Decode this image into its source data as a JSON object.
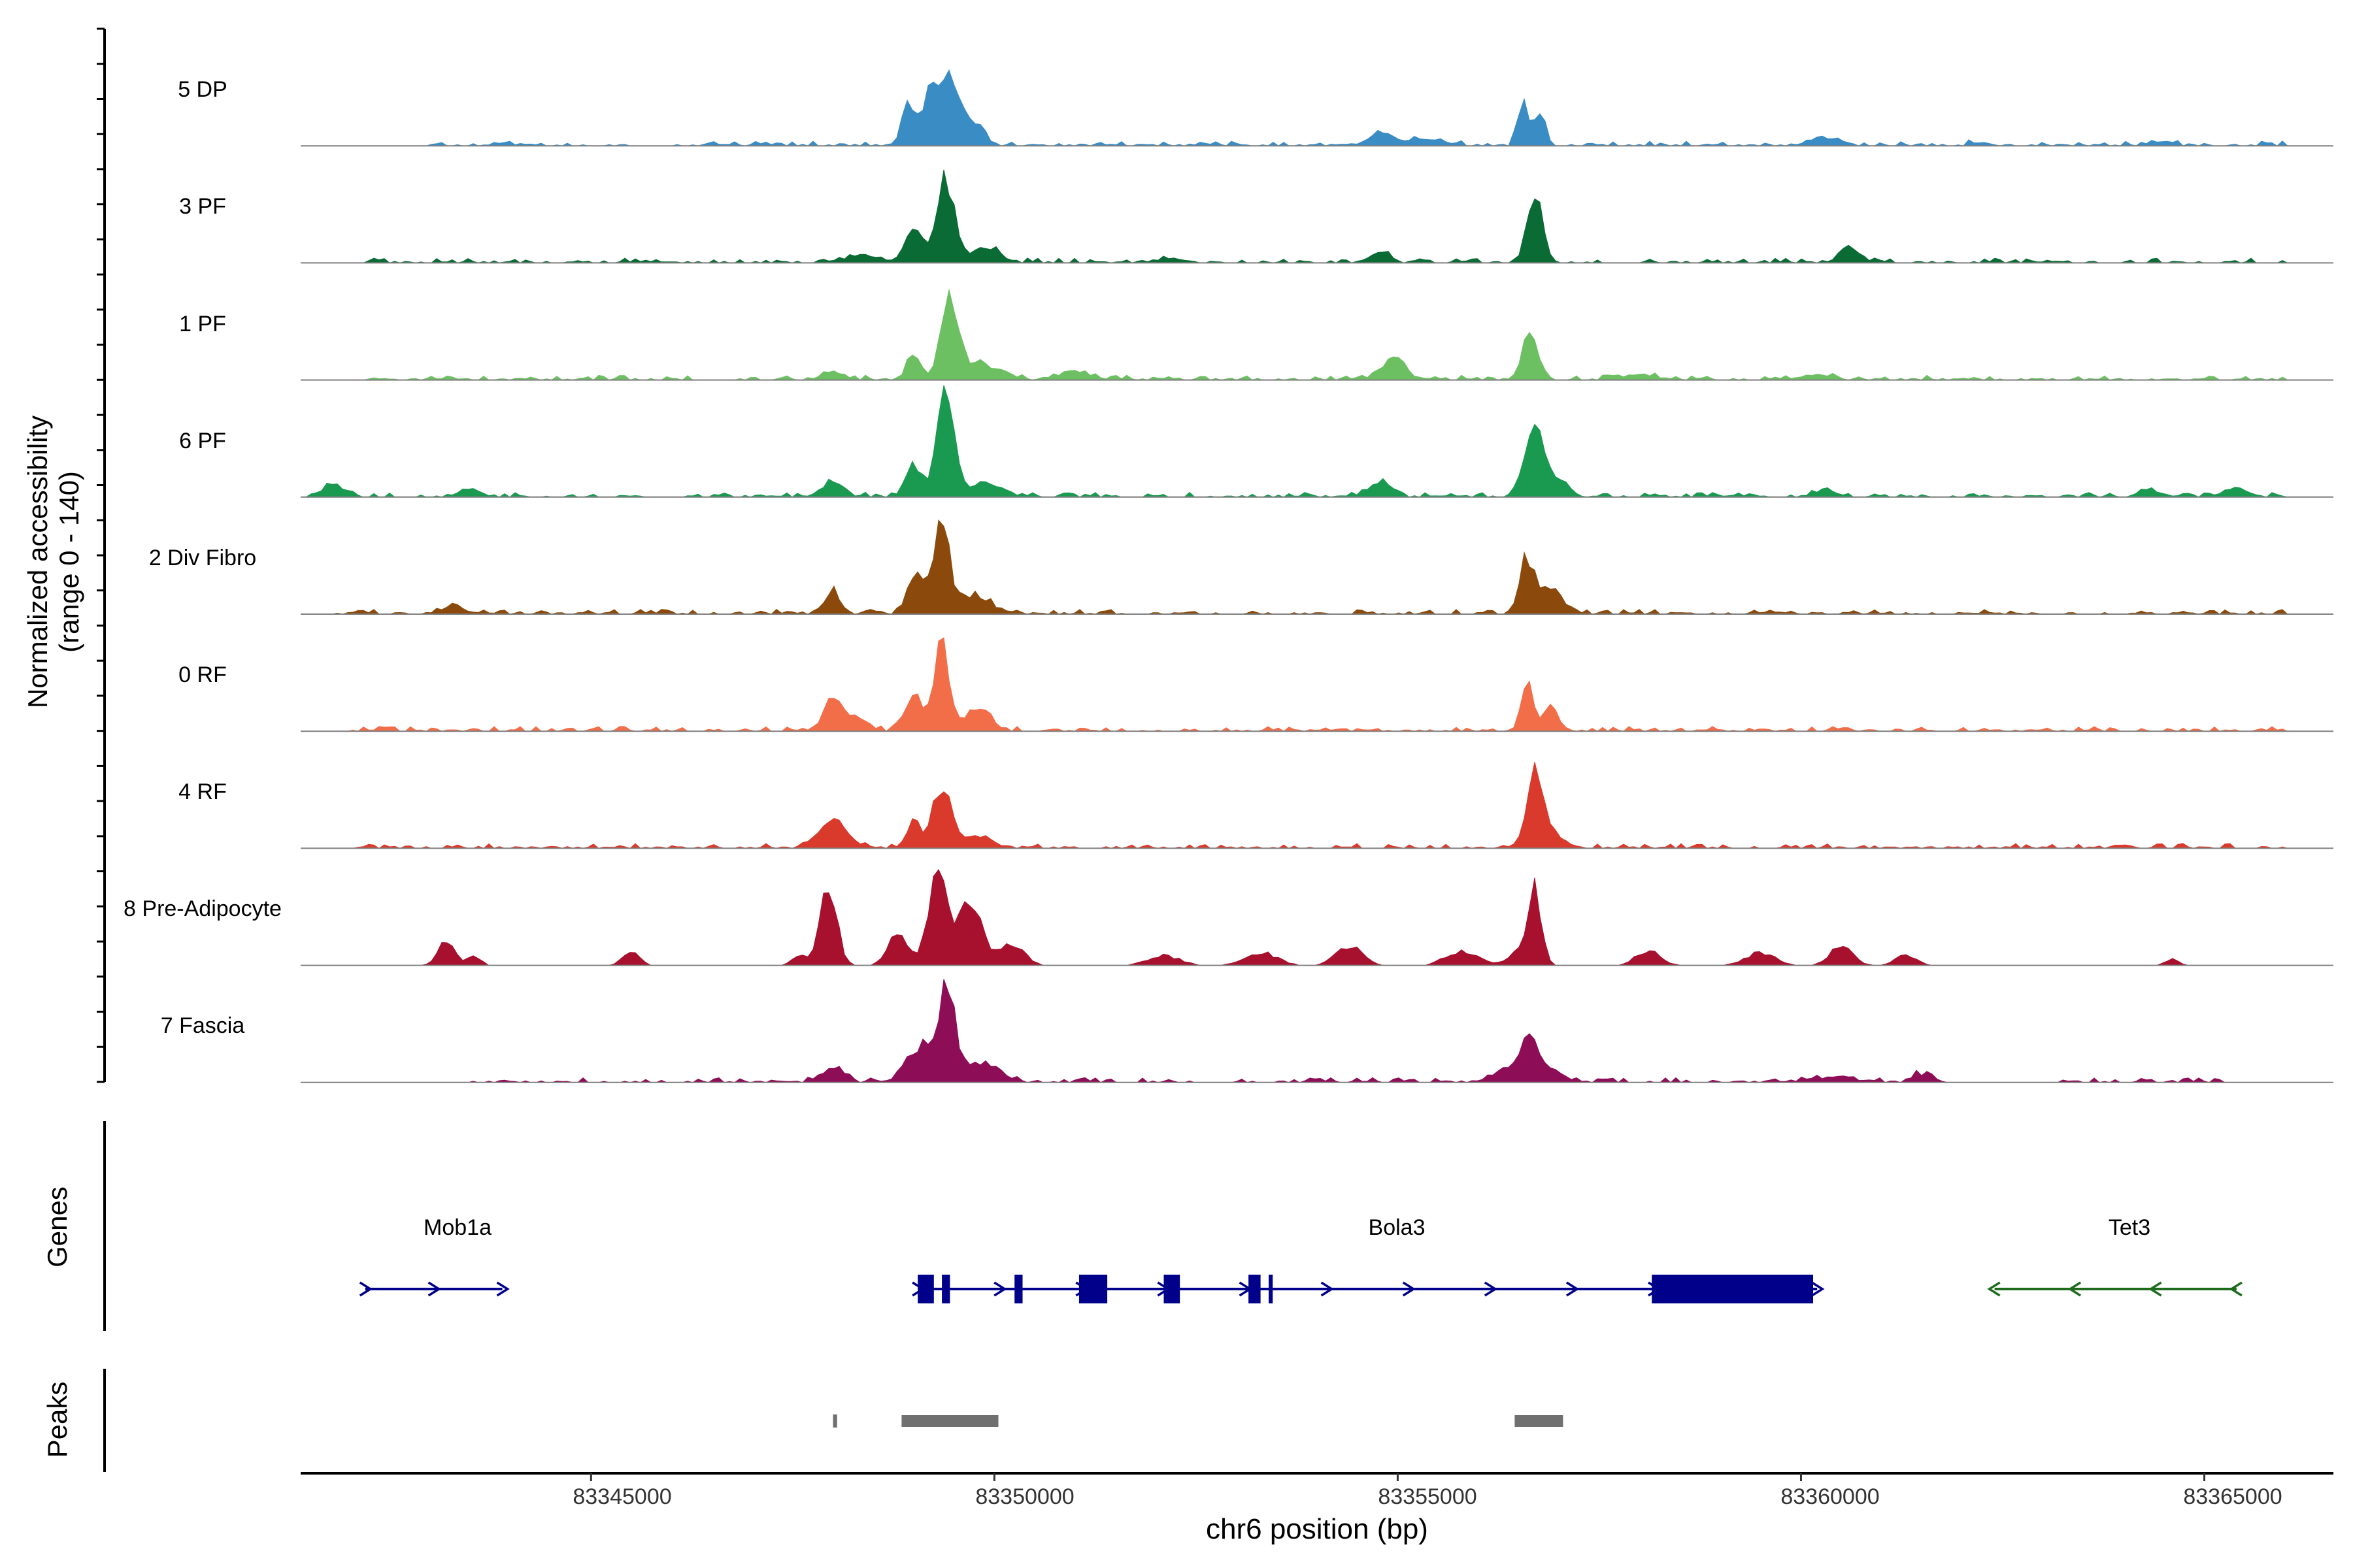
{
  "chart_data": {
    "type": "area",
    "title": "",
    "ylabel_line1": "Normalized accessibility",
    "ylabel_line2": "(range 0 - 140)",
    "yrange": [
      0,
      140
    ],
    "xlabel": "chr6 position (bp)",
    "xlim": [
      83341400,
      83366600
    ],
    "xticks": [
      83345000,
      83350000,
      83355000,
      83360000,
      83365000
    ],
    "xtick_labels": [
      "83345000",
      "83350000",
      "83355000",
      "83360000",
      "83365000"
    ],
    "tracks": [
      {
        "name": "5 DP",
        "color": "#3a8cc4",
        "start": 83341400,
        "end": 83366600,
        "peaks": [
          [
            83348950,
            25,
            90
          ],
          [
            83349200,
            28,
            55
          ],
          [
            83349400,
            47,
            140
          ],
          [
            83349750,
            14,
            110
          ],
          [
            83354800,
            8,
            140
          ],
          [
            83355400,
            4,
            200
          ],
          [
            83356550,
            29,
            60
          ],
          [
            83356750,
            21,
            70
          ],
          [
            83360300,
            5,
            180
          ],
          [
            83362200,
            2,
            100
          ],
          [
            83364500,
            2,
            100
          ]
        ],
        "noise": 3,
        "coverage": [
          [
            83343000,
            83366000
          ]
        ]
      },
      {
        "name": "3 PF",
        "color": "#0a6b35",
        "start": 83341400,
        "end": 83366600,
        "peaks": [
          [
            83348400,
            4,
            200
          ],
          [
            83349000,
            22,
            100
          ],
          [
            83349400,
            50,
            110
          ],
          [
            83349900,
            10,
            160
          ],
          [
            83352200,
            3,
            150
          ],
          [
            83354800,
            6,
            120
          ],
          [
            83356700,
            48,
            90
          ],
          [
            83360600,
            10,
            120
          ]
        ],
        "noise": 3,
        "coverage": [
          [
            83342200,
            83366000
          ]
        ]
      },
      {
        "name": "1 PF",
        "color": "#6cc062",
        "start": 83341400,
        "end": 83366600,
        "peaks": [
          [
            83348000,
            5,
            120
          ],
          [
            83349000,
            17,
            80
          ],
          [
            83349450,
            53,
            110
          ],
          [
            83349850,
            10,
            200
          ],
          [
            83351000,
            5,
            180
          ],
          [
            83354950,
            14,
            140
          ],
          [
            83356650,
            33,
            90
          ],
          [
            83358000,
            3,
            200
          ],
          [
            83360200,
            3,
            200
          ]
        ],
        "noise": 3,
        "coverage": [
          [
            83342200,
            83366000
          ]
        ]
      },
      {
        "name": "6 PF",
        "color": "#1a9a50",
        "start": 83341400,
        "end": 83366600,
        "peaks": [
          [
            83341800,
            7,
            120
          ],
          [
            83343500,
            4,
            120
          ],
          [
            83348000,
            10,
            120
          ],
          [
            83349000,
            20,
            90
          ],
          [
            83349400,
            60,
            110
          ],
          [
            83349900,
            8,
            200
          ],
          [
            83354800,
            8,
            140
          ],
          [
            83356700,
            44,
            120
          ],
          [
            83357000,
            10,
            120
          ],
          [
            83360300,
            4,
            120
          ],
          [
            83364300,
            4,
            120
          ],
          [
            83365400,
            5,
            120
          ]
        ],
        "noise": 3,
        "coverage": [
          [
            83341500,
            83366000
          ]
        ]
      },
      {
        "name": "2 Div Fibro",
        "color": "#8b4a0c",
        "start": 83341400,
        "end": 83366600,
        "peaks": [
          [
            83343300,
            5,
            120
          ],
          [
            83348000,
            13,
            100
          ],
          [
            83349050,
            28,
            110
          ],
          [
            83349350,
            63,
            90
          ],
          [
            83349750,
            12,
            200
          ],
          [
            83356600,
            35,
            90
          ],
          [
            83356900,
            18,
            120
          ]
        ],
        "noise": 3,
        "coverage": [
          [
            83341800,
            83366000
          ]
        ]
      },
      {
        "name": "0 RF",
        "color": "#f26e48",
        "start": 83341400,
        "end": 83366600,
        "peaks": [
          [
            83348000,
            20,
            110
          ],
          [
            83348300,
            8,
            120
          ],
          [
            83349000,
            22,
            100
          ],
          [
            83349350,
            57,
            90
          ],
          [
            83349800,
            16,
            140
          ],
          [
            83356600,
            30,
            70
          ],
          [
            83356900,
            14,
            100
          ]
        ],
        "noise": 3,
        "coverage": [
          [
            83342000,
            83366000
          ]
        ]
      },
      {
        "name": "4 RF",
        "color": "#d93a2c",
        "start": 83341400,
        "end": 83366600,
        "peaks": [
          [
            83348000,
            17,
            170
          ],
          [
            83349000,
            19,
            80
          ],
          [
            83349350,
            40,
            110
          ],
          [
            83349800,
            8,
            160
          ],
          [
            83356700,
            44,
            100
          ],
          [
            83356950,
            8,
            120
          ]
        ],
        "noise": 3,
        "coverage": [
          [
            83342000,
            83366000
          ]
        ]
      },
      {
        "name": "8 Pre-Adipocyte",
        "color": "#a8112e",
        "start": 83341400,
        "end": 83366600,
        "peaks": [
          [
            83343200,
            16,
            100
          ],
          [
            83343550,
            6,
            80
          ],
          [
            83345500,
            9,
            100
          ],
          [
            83347600,
            7,
            100
          ],
          [
            83347950,
            50,
            100
          ],
          [
            83348800,
            20,
            120
          ],
          [
            83349300,
            56,
            120
          ],
          [
            83349700,
            40,
            140
          ],
          [
            83350200,
            14,
            160
          ],
          [
            83352100,
            6,
            200
          ],
          [
            83353300,
            8,
            200
          ],
          [
            83354400,
            12,
            160
          ],
          [
            83355800,
            9,
            200
          ],
          [
            83356500,
            10,
            120
          ],
          [
            83356700,
            47,
            80
          ],
          [
            83358100,
            9,
            150
          ],
          [
            83359500,
            8,
            180
          ],
          [
            83360500,
            12,
            140
          ],
          [
            83361300,
            7,
            120
          ],
          [
            83364600,
            4,
            80
          ]
        ],
        "noise": 0,
        "coverage": []
      },
      {
        "name": "7 Fascia",
        "color": "#8e0d57",
        "start": 83341400,
        "end": 83366600,
        "peaks": [
          [
            83348000,
            8,
            140
          ],
          [
            83349050,
            22,
            140
          ],
          [
            83349400,
            58,
            110
          ],
          [
            83349850,
            12,
            200
          ],
          [
            83356350,
            8,
            180
          ],
          [
            83356650,
            25,
            120
          ],
          [
            83356950,
            6,
            120
          ],
          [
            83360400,
            3,
            250
          ],
          [
            83361500,
            5,
            120
          ]
        ],
        "noise": 3,
        "coverage": [
          [
            83343500,
            83361800
          ],
          [
            83363200,
            83365200
          ]
        ]
      }
    ],
    "genes_label": "Genes",
    "genes": [
      {
        "name": "Mob1a",
        "strand": "+",
        "color": "#00008b",
        "start": 83342200,
        "end": 83343900,
        "exons": [],
        "label_x": 83343100
      },
      {
        "name": "Bola3",
        "strand": "+",
        "color": "#00008b",
        "start": 83349050,
        "end": 83360200,
        "exons": [
          [
            83349050,
            83349250
          ],
          [
            83349350,
            83349450
          ],
          [
            83350250,
            83350350
          ],
          [
            83351050,
            83351400
          ],
          [
            83352100,
            83352300
          ],
          [
            83353150,
            83353300
          ],
          [
            83353400,
            83353450
          ],
          [
            83358150,
            83360150
          ]
        ],
        "label_x": 83354900
      },
      {
        "name": "Tet3",
        "strand": "-",
        "color": "#1e6b1e",
        "start": 83362400,
        "end": 83365400,
        "exons": [],
        "label_x": 83364000
      }
    ],
    "peaks_label": "Peaks",
    "peak_regions": [
      [
        83348000,
        83348050
      ],
      [
        83348850,
        83350050
      ],
      [
        83356450,
        83357050
      ]
    ]
  }
}
